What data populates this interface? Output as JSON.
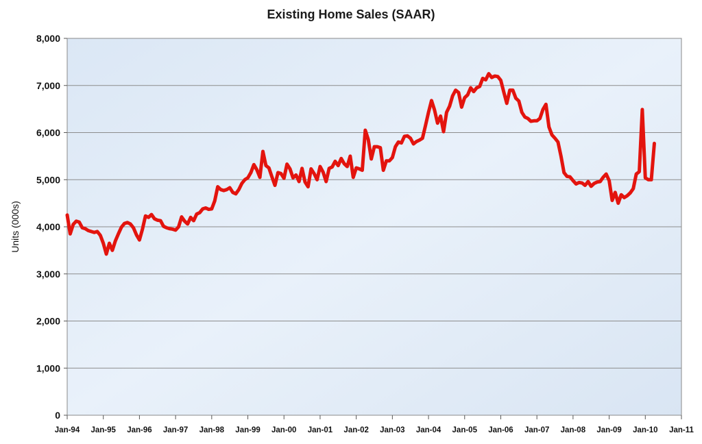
{
  "chart_data": {
    "type": "line",
    "title": "Existing Home Sales (SAAR)",
    "xlabel": "",
    "ylabel": "Units (000s)",
    "ylim": [
      0,
      8000
    ],
    "y_ticks": [
      0,
      1000,
      2000,
      3000,
      4000,
      5000,
      6000,
      7000,
      8000
    ],
    "y_tick_labels": [
      "0",
      "1,000",
      "2,000",
      "3,000",
      "4,000",
      "5,000",
      "6,000",
      "7,000",
      "8,000"
    ],
    "x_tick_labels": [
      "Jan-94",
      "Jan-95",
      "Jan-96",
      "Jan-97",
      "Jan-98",
      "Jan-99",
      "Jan-00",
      "Jan-01",
      "Jan-02",
      "Jan-03",
      "Jan-04",
      "Jan-05",
      "Jan-06",
      "Jan-07",
      "Jan-08",
      "Jan-09",
      "Jan-10",
      "Jan-11"
    ],
    "x_range": [
      "1994-01",
      "2011-01"
    ],
    "grid": "horizontal",
    "line_color": "#e3140e",
    "series": [
      {
        "x": [
          "1994-01",
          "1994-02",
          "1994-03",
          "1994-04",
          "1994-05",
          "1994-06",
          "1994-07",
          "1994-08",
          "1994-09",
          "1994-10",
          "1994-11",
          "1994-12",
          "1995-01",
          "1995-02",
          "1995-03",
          "1995-04",
          "1995-05",
          "1995-06",
          "1995-07",
          "1995-08",
          "1995-09",
          "1995-10",
          "1995-11",
          "1995-12",
          "1996-01",
          "1996-02",
          "1996-03",
          "1996-04",
          "1996-05",
          "1996-06",
          "1996-07",
          "1996-08",
          "1996-09",
          "1996-10",
          "1996-11",
          "1996-12",
          "1997-01",
          "1997-02",
          "1997-03",
          "1997-04",
          "1997-05",
          "1997-06",
          "1997-07",
          "1997-08",
          "1997-09",
          "1997-10",
          "1997-11",
          "1997-12",
          "1998-01",
          "1998-02",
          "1998-03",
          "1998-04",
          "1998-05",
          "1998-06",
          "1998-07",
          "1998-08",
          "1998-09",
          "1998-10",
          "1998-11",
          "1998-12",
          "1999-01",
          "1999-02",
          "1999-03",
          "1999-04",
          "1999-05",
          "1999-06",
          "1999-07",
          "1999-08",
          "1999-09",
          "1999-10",
          "1999-11",
          "1999-12",
          "2000-01",
          "2000-02",
          "2000-03",
          "2000-04",
          "2000-05",
          "2000-06",
          "2000-07",
          "2000-08",
          "2000-09",
          "2000-10",
          "2000-11",
          "2000-12",
          "2001-01",
          "2001-02",
          "2001-03",
          "2001-04",
          "2001-05",
          "2001-06",
          "2001-07",
          "2001-08",
          "2001-09",
          "2001-10",
          "2001-11",
          "2001-12",
          "2002-01",
          "2002-02",
          "2002-03",
          "2002-04",
          "2002-05",
          "2002-06",
          "2002-07",
          "2002-08",
          "2002-09",
          "2002-10",
          "2002-11",
          "2002-12",
          "2003-01",
          "2003-02",
          "2003-03",
          "2003-04",
          "2003-05",
          "2003-06",
          "2003-07",
          "2003-08",
          "2003-09",
          "2003-10",
          "2003-11",
          "2003-12",
          "2004-01",
          "2004-02",
          "2004-03",
          "2004-04",
          "2004-05",
          "2004-06",
          "2004-07",
          "2004-08",
          "2004-09",
          "2004-10",
          "2004-11",
          "2004-12",
          "2005-01",
          "2005-02",
          "2005-03",
          "2005-04",
          "2005-05",
          "2005-06",
          "2005-07",
          "2005-08",
          "2005-09",
          "2005-10",
          "2005-11",
          "2005-12",
          "2006-01",
          "2006-02",
          "2006-03",
          "2006-04",
          "2006-05",
          "2006-06",
          "2006-07",
          "2006-08",
          "2006-09",
          "2006-10",
          "2006-11",
          "2006-12",
          "2007-01",
          "2007-02",
          "2007-03",
          "2007-04",
          "2007-05",
          "2007-06",
          "2007-07",
          "2007-08",
          "2007-09",
          "2007-10",
          "2007-11",
          "2007-12",
          "2008-01",
          "2008-02",
          "2008-03",
          "2008-04",
          "2008-05",
          "2008-06",
          "2008-07",
          "2008-08",
          "2008-09",
          "2008-10",
          "2008-11",
          "2008-12",
          "2009-01",
          "2009-02",
          "2009-03",
          "2009-04",
          "2009-05",
          "2009-06",
          "2009-07",
          "2009-08",
          "2009-09",
          "2009-10",
          "2009-11",
          "2009-12",
          "2010-01",
          "2010-02",
          "2010-03",
          "2010-04"
        ],
        "values": [
          4250,
          3850,
          4050,
          4120,
          4100,
          3980,
          3960,
          3920,
          3900,
          3880,
          3900,
          3820,
          3650,
          3420,
          3650,
          3500,
          3700,
          3850,
          3990,
          4070,
          4090,
          4060,
          3980,
          3830,
          3720,
          3950,
          4230,
          4200,
          4260,
          4170,
          4140,
          4130,
          4010,
          3980,
          3960,
          3950,
          3930,
          4000,
          4210,
          4120,
          4060,
          4200,
          4130,
          4270,
          4300,
          4380,
          4400,
          4370,
          4380,
          4550,
          4850,
          4790,
          4770,
          4790,
          4830,
          4730,
          4700,
          4790,
          4920,
          5000,
          5040,
          5150,
          5320,
          5210,
          5050,
          5600,
          5300,
          5250,
          5060,
          4880,
          5150,
          5130,
          5030,
          5330,
          5230,
          5040,
          5100,
          4960,
          5240,
          4950,
          4850,
          5230,
          5130,
          5000,
          5280,
          5160,
          4960,
          5240,
          5270,
          5390,
          5300,
          5450,
          5340,
          5280,
          5500,
          5050,
          5250,
          5230,
          5200,
          6050,
          5850,
          5440,
          5700,
          5700,
          5680,
          5200,
          5400,
          5400,
          5470,
          5700,
          5800,
          5780,
          5920,
          5930,
          5880,
          5760,
          5810,
          5840,
          5880,
          6150,
          6430,
          6680,
          6480,
          6200,
          6350,
          6020,
          6430,
          6560,
          6780,
          6900,
          6850,
          6540,
          6740,
          6800,
          6950,
          6870,
          6950,
          6980,
          7150,
          7120,
          7250,
          7170,
          7200,
          7190,
          7110,
          6860,
          6620,
          6900,
          6900,
          6730,
          6670,
          6430,
          6330,
          6300,
          6240,
          6250,
          6250,
          6300,
          6490,
          6600,
          6120,
          5950,
          5880,
          5800,
          5500,
          5150,
          5070,
          5060,
          4980,
          4910,
          4940,
          4930,
          4880,
          4960,
          4860,
          4920,
          4950,
          4960,
          5050,
          5120,
          4980,
          4560,
          4730,
          4500,
          4680,
          4620,
          4660,
          4720,
          4810,
          5120,
          5170,
          6490,
          5040,
          5000,
          5000,
          5770
        ]
      }
    ]
  }
}
